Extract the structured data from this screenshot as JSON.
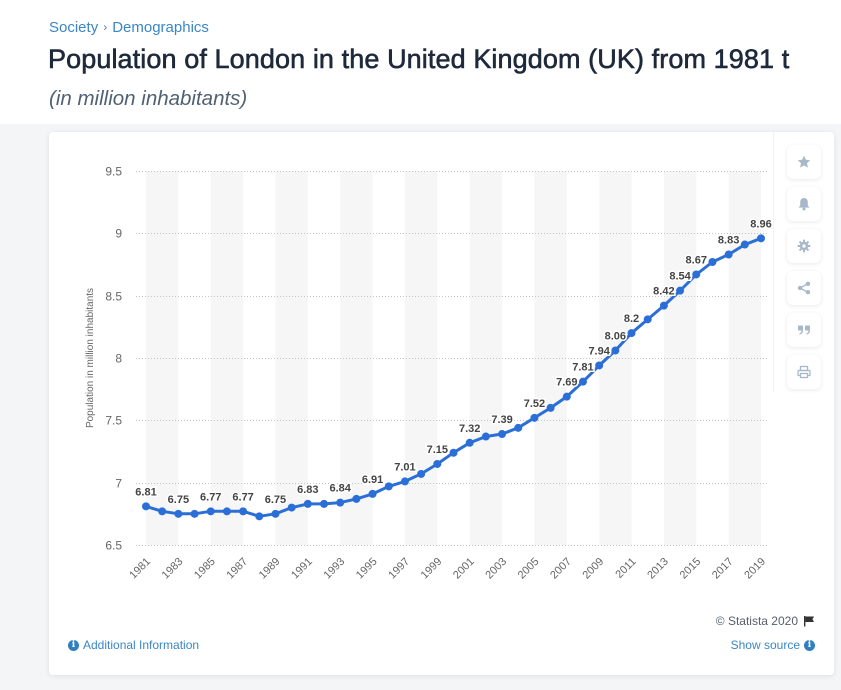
{
  "breadcrumb": {
    "items": [
      {
        "label": "Society"
      },
      {
        "label": "Demographics"
      }
    ],
    "separator": "›"
  },
  "title": "Population of London in the United Kingdom (UK) from 1981 t",
  "subtitle": "(in million inhabitants)",
  "toolbar": [
    {
      "name": "favorite",
      "icon": "star-icon"
    },
    {
      "name": "notification",
      "icon": "bell-icon"
    },
    {
      "name": "settings",
      "icon": "gear-icon"
    },
    {
      "name": "share",
      "icon": "share-icon"
    },
    {
      "name": "cite",
      "icon": "quote-icon"
    },
    {
      "name": "print",
      "icon": "print-icon"
    }
  ],
  "footer": {
    "copyright": "© Statista 2020",
    "flag_icon": "flag-icon",
    "additional_info": "Additional Information",
    "show_source": "Show source",
    "info_icon_glyph": "i"
  },
  "colors": {
    "line": "#2b6fd6",
    "link": "#3b86c6",
    "title": "#1e2a3b",
    "subtitle": "#4f6173",
    "icon": "#a9b8c8",
    "band": "#f6f6f7",
    "grid": "#c4c4c4",
    "axis_text": "#666666",
    "data_label": "#444444"
  },
  "chart_data": {
    "type": "line",
    "title": "Population of London in the United Kingdom (UK) from 1981 t",
    "subtitle": "(in million inhabitants)",
    "xlabel": "",
    "ylabel": "Population in million inhabitants",
    "x": [
      1981,
      1982,
      1983,
      1984,
      1985,
      1986,
      1987,
      1988,
      1989,
      1990,
      1991,
      1992,
      1993,
      1994,
      1995,
      1996,
      1997,
      1998,
      1999,
      2000,
      2001,
      2002,
      2003,
      2004,
      2005,
      2006,
      2007,
      2008,
      2009,
      2010,
      2011,
      2012,
      2013,
      2014,
      2015,
      2016,
      2017,
      2018,
      2019
    ],
    "series": [
      {
        "name": "Population (million inhabitants)",
        "values": [
          6.81,
          6.77,
          6.75,
          6.75,
          6.77,
          6.77,
          6.77,
          6.73,
          6.75,
          6.8,
          6.83,
          6.83,
          6.84,
          6.87,
          6.91,
          6.97,
          7.01,
          7.07,
          7.15,
          7.24,
          7.32,
          7.37,
          7.39,
          7.44,
          7.52,
          7.6,
          7.69,
          7.81,
          7.94,
          8.06,
          8.2,
          8.31,
          8.42,
          8.54,
          8.67,
          8.77,
          8.83,
          8.91,
          8.96
        ]
      }
    ],
    "labeled_points": [
      1981,
      1983,
      1985,
      1987,
      1989,
      1991,
      1993,
      1995,
      1997,
      1999,
      2001,
      2003,
      2005,
      2007,
      2008,
      2009,
      2010,
      2011,
      2013,
      2014,
      2015,
      2017,
      2019
    ],
    "ylim": [
      6.5,
      9.5
    ],
    "yticks": [
      6.5,
      7,
      7.5,
      8,
      8.5,
      9,
      9.5
    ],
    "ytick_labels": [
      "6.5",
      "7",
      "7.5",
      "8",
      "8.5",
      "9",
      "9.5"
    ],
    "xticks": [
      1981,
      1983,
      1985,
      1987,
      1989,
      1991,
      1993,
      1995,
      1997,
      1999,
      2001,
      2003,
      2005,
      2007,
      2009,
      2011,
      2013,
      2015,
      2017,
      2019
    ],
    "xtick_labels": [
      "1981",
      "1983",
      "1985",
      "1987",
      "1989",
      "1991",
      "1993",
      "1995",
      "1997",
      "1999",
      "2001",
      "2003",
      "2005",
      "2007",
      "2009",
      "2011",
      "2013",
      "2015",
      "2017",
      "2019"
    ],
    "grid": "horizontal dotted",
    "alternating_bands": true,
    "legend": "none",
    "credit": "© Statista 2020"
  }
}
